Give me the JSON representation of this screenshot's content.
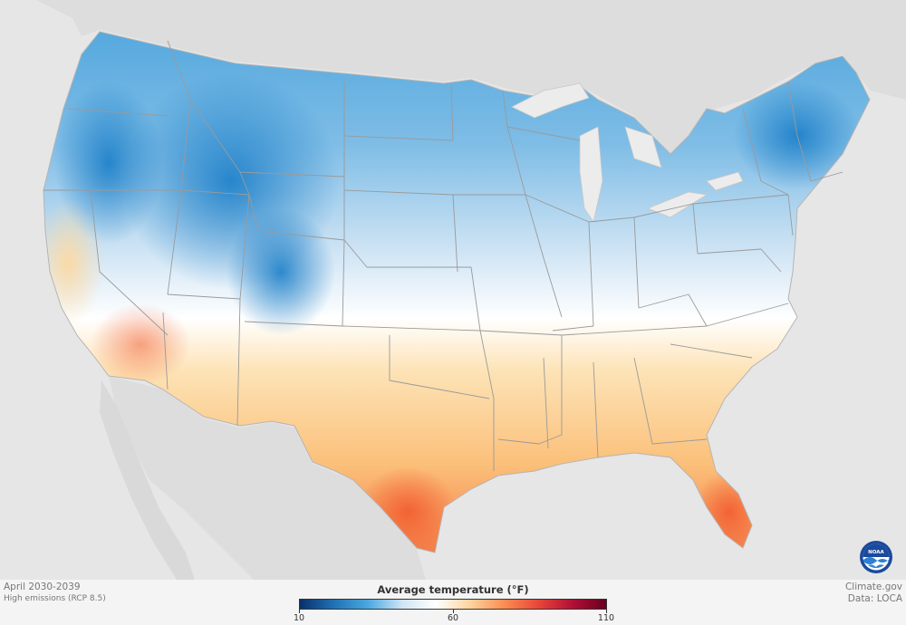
{
  "caption": {
    "period": "April 2030-2039",
    "scenario": "High emissions (RCP 8.5)"
  },
  "credits": {
    "site": "Climate.gov",
    "data_source": "Data: LOCA"
  },
  "legend": {
    "title": "Average temperature (°F)",
    "ticks": [
      "10",
      "60",
      "110"
    ],
    "colors": [
      "#08306b",
      "#2171b5",
      "#4aa8e0",
      "#cfe4f5",
      "#ffffff",
      "#fdd49e",
      "#fb8d52",
      "#e8463a",
      "#b21036",
      "#67001f"
    ]
  },
  "logo": {
    "text": "NOAA",
    "icon": "noaa-logo-icon"
  },
  "colors": {
    "ocean_land_background": "#e6e6e6",
    "state_borders": "#9a9a9a"
  }
}
